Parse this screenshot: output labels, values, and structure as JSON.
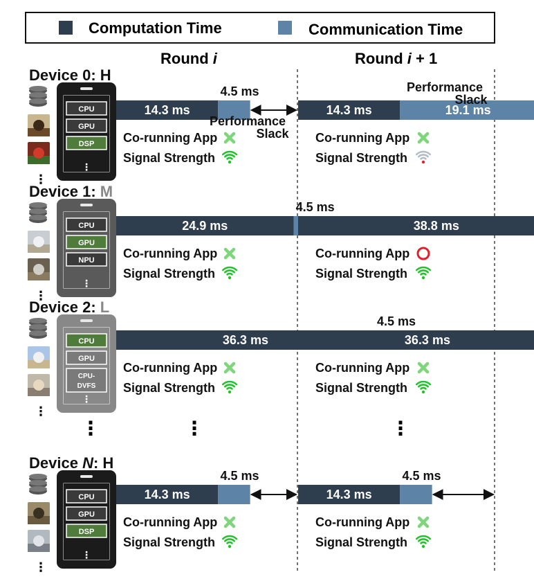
{
  "legend": {
    "computation": "Computation Time",
    "communication": "Communication Time"
  },
  "colors": {
    "computation": "#2e3e4e",
    "communication": "#5d84a7",
    "chip_green": "#4f7b3b",
    "chip_dark": "#3a3a3a",
    "wifi_green": "#22c22a",
    "wifi_weak": "#b4bcc6",
    "red": "#e0202a",
    "cross": "#7ed67a"
  },
  "rounds": {
    "round_i": "Round i",
    "round_i1": "Round i + 1"
  },
  "labels": {
    "co_running": "Co-running App",
    "signal": "Signal Strength",
    "performance_slack": "Performance Slack",
    "ellipsis": "⋮"
  },
  "devices": [
    {
      "name": "Device 0: H",
      "chips": [
        "CPU",
        "GPU",
        "DSP"
      ],
      "round_i": {
        "comp": "14.3 ms",
        "comm": "4.5 ms",
        "co_running": "none",
        "signal": "strong"
      },
      "round_i1": {
        "comp": "14.3 ms",
        "comm": "19.1 ms",
        "co_running": "none",
        "signal": "weak"
      }
    },
    {
      "name": "Device 1: M",
      "chips": [
        "CPU",
        "GPU",
        "NPU"
      ],
      "round_i": {
        "comp": "24.9 ms",
        "comm": "4.5 ms",
        "co_running": "none",
        "signal": "strong"
      },
      "round_i1": {
        "comp": "38.8 ms",
        "comm": "4.5 ms",
        "co_running": "running",
        "signal": "strong"
      }
    },
    {
      "name": "Device 2: L",
      "chips": [
        "CPU",
        "GPU",
        "CPU-DVFS"
      ],
      "round_i": {
        "comp": "36.3 ms",
        "comm": "4.5 ms",
        "co_running": "none",
        "signal": "strong"
      },
      "round_i1": {
        "comp": "36.3 ms",
        "comm": "4.5 ms",
        "co_running": "none",
        "signal": "strong"
      }
    },
    {
      "name": "Device N: H",
      "chips": [
        "CPU",
        "GPU",
        "DSP"
      ],
      "round_i": {
        "comp": "14.3 ms",
        "comm": "4.5 ms",
        "co_running": "none",
        "signal": "strong"
      },
      "round_i1": {
        "comp": "14.3 ms",
        "comm": "4.5 ms",
        "co_running": "none",
        "signal": "strong"
      }
    }
  ]
}
